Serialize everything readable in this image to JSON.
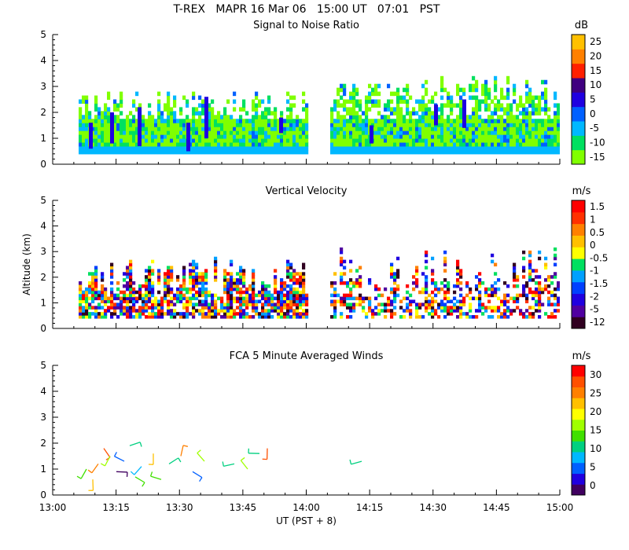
{
  "figure": {
    "title": "T-REX   MAPR 16 Mar 06   15:00 UT   07:01   PST",
    "xlabel": "UT  (PST + 8)",
    "ylabel": "Altitude (km)",
    "x_ticks": [
      "13:00",
      "13:15",
      "13:30",
      "13:45",
      "14:00",
      "14:15",
      "14:30",
      "14:45",
      "15:00"
    ]
  },
  "chart_data": [
    {
      "type": "heatmap",
      "title": "Signal to Noise Ratio",
      "ylim": [
        0,
        5
      ],
      "y_ticks": [
        "0",
        "1",
        "2",
        "3",
        "4",
        "5"
      ],
      "colorbar": {
        "unit": "dB",
        "labels": [
          "-15",
          "-10",
          "-5",
          "0",
          "5",
          "10",
          "15",
          "20",
          "25"
        ],
        "colors": [
          "#80ff00",
          "#00e060",
          "#00b8ff",
          "#0060ff",
          "#2000e0",
          "#400080",
          "#ff2000",
          "#ff8000",
          "#ffc000"
        ]
      }
    },
    {
      "type": "heatmap",
      "title": "Vertical Velocity",
      "ylim": [
        0,
        5
      ],
      "y_ticks": [
        "0",
        "1",
        "2",
        "3",
        "4",
        "5"
      ],
      "colorbar": {
        "unit": "m/s",
        "labels": [
          "-12",
          "-5",
          "-2",
          "-1.5",
          "-1",
          "-0.5",
          "0",
          "0.5",
          "1",
          "1.5"
        ],
        "colors": [
          "#300020",
          "#5000a0",
          "#2000e0",
          "#0040ff",
          "#00a0ff",
          "#00e060",
          "#ffff00",
          "#ffc000",
          "#ff8000",
          "#ff3000",
          "#ff0000"
        ]
      }
    },
    {
      "type": "scatter",
      "title": "FCA 5 Minute Averaged Winds",
      "ylim": [
        0,
        5
      ],
      "y_ticks": [
        "0",
        "1",
        "2",
        "3",
        "4",
        "5"
      ],
      "colorbar": {
        "unit": "m/s",
        "labels": [
          "0",
          "5",
          "10",
          "15",
          "20",
          "25",
          "30"
        ],
        "colors": [
          "#400060",
          "#2000e0",
          "#0060ff",
          "#00b8ff",
          "#00d080",
          "#40e000",
          "#a0ff00",
          "#ffff00",
          "#ffc000",
          "#ff8000",
          "#ff5000",
          "#ff0000"
        ]
      }
    }
  ]
}
